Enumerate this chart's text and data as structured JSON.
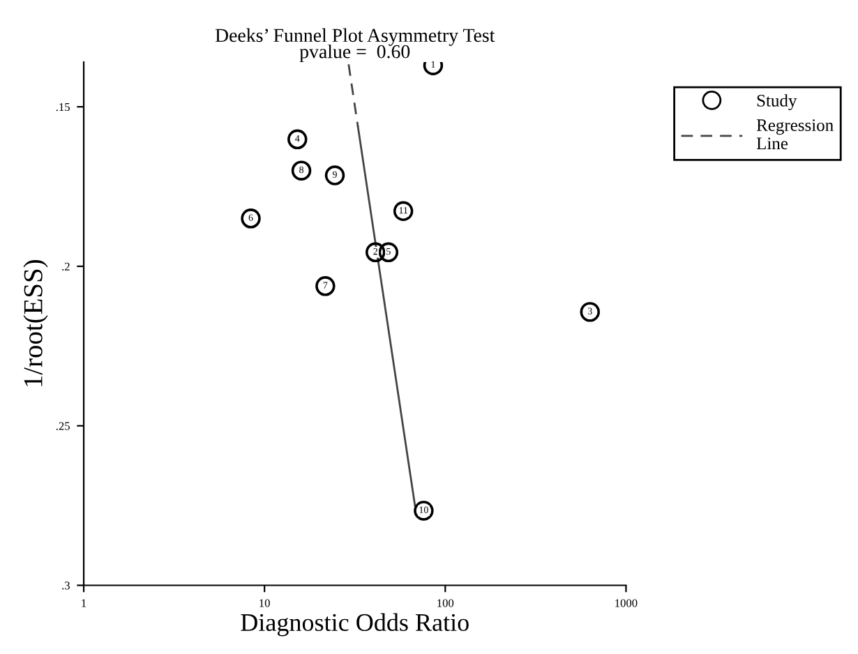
{
  "chart_data": {
    "type": "scatter",
    "title": "Deeks’ Funnel Plot Asymmetry Test\npvalue =  0.60",
    "xlabel": "Diagnostic Odds Ratio",
    "ylabel": "1/root(ESS)",
    "log": "x",
    "xlim": [
      1,
      1000
    ],
    "xticks": [
      1,
      10,
      100,
      1000
    ],
    "ylim": [
      0.3,
      0.136
    ],
    "yticks": [
      {
        "value": 0.15,
        "label": ".15"
      },
      {
        "value": 0.2,
        "label": ".2"
      },
      {
        "value": 0.25,
        "label": ".25"
      },
      {
        "value": 0.3,
        "label": ".3"
      }
    ],
    "grid": false,
    "legend": "top right",
    "marker": "circle",
    "series": [
      {
        "name": "Study",
        "color": "#000000",
        "x": [
          85.7,
          41.1,
          632,
          15.2,
          48.5,
          8.4,
          21.7,
          16,
          24.5,
          76,
          58.6
        ],
        "values": [
          0.137,
          0.1956,
          0.2143,
          0.1602,
          0.1956,
          0.185,
          0.2062,
          0.17,
          0.1715,
          0.2766,
          0.1827
        ]
      },
      {
        "name": "Regression\nLine",
        "type": "line",
        "marker": "none",
        "line_style": "dashed",
        "color": "#444444",
        "x": [
          29.2,
          32.9
        ],
        "values": [
          0.1367,
          0.1563
        ]
      },
      {
        "type": "line",
        "marker": "none",
        "line_style": "solid",
        "color": "#444444",
        "x": [
          32.9,
          68
        ],
        "values": [
          0.1563,
          0.275
        ]
      }
    ],
    "annotations": [
      {
        "text": "1",
        "x": 85.7,
        "y": 0.137
      },
      {
        "text": "2",
        "x": 41.1,
        "y": 0.1956
      },
      {
        "text": "3",
        "x": 632,
        "y": 0.2143
      },
      {
        "text": "4",
        "x": 15.2,
        "y": 0.1602
      },
      {
        "text": "5",
        "x": 48.5,
        "y": 0.1956
      },
      {
        "text": "6",
        "x": 8.4,
        "y": 0.185
      },
      {
        "text": "7",
        "x": 21.7,
        "y": 0.2062
      },
      {
        "text": "8",
        "x": 16,
        "y": 0.17
      },
      {
        "text": "9",
        "x": 24.5,
        "y": 0.1715
      },
      {
        "text": "10",
        "x": 76,
        "y": 0.2766
      },
      {
        "text": "11",
        "x": 58.6,
        "y": 0.1827
      }
    ]
  }
}
